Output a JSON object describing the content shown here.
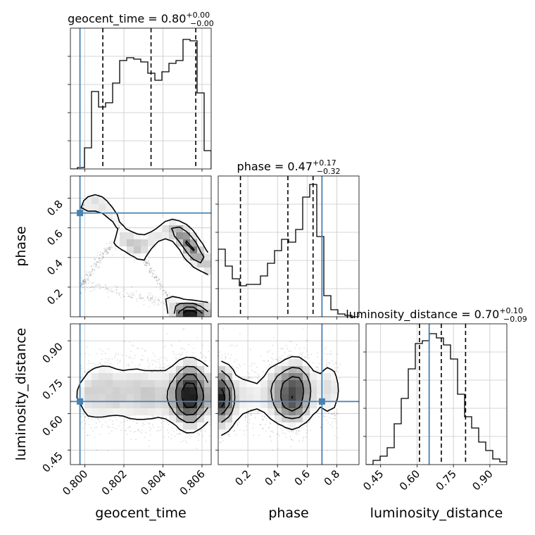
{
  "chart_data": {
    "type": "corner",
    "parameters": [
      "geocent_time",
      "phase",
      "luminosity_distance"
    ],
    "axis_labels": {
      "geocent_time": "geocent_time",
      "phase": "phase",
      "luminosity_distance": "luminosity_distance"
    },
    "ranges": {
      "geocent_time": [
        0.79926,
        0.80647
      ],
      "phase": [
        0.0,
        0.95
      ],
      "luminosity_distance": [
        0.39,
        0.97
      ]
    },
    "ticks": {
      "geocent_time": {
        "values": [
          0.8,
          0.802,
          0.804,
          0.806
        ],
        "labels": [
          "0.800",
          "0.802",
          "0.804",
          "0.806"
        ]
      },
      "phase": {
        "values": [
          0.2,
          0.4,
          0.6,
          0.8
        ],
        "labels": [
          "0.2",
          "0.4",
          "0.6",
          "0.8"
        ]
      },
      "luminosity_distance": {
        "values": [
          0.45,
          0.6,
          0.75,
          0.9
        ],
        "labels": [
          "0.45",
          "0.60",
          "0.75",
          "0.90"
        ]
      }
    },
    "titles": [
      {
        "param": "geocent_time",
        "prefix": "geocent_time = 0.80",
        "plus": "+0.00",
        "minus": "−0.00"
      },
      {
        "param": "phase",
        "prefix": "phase = 0.47",
        "plus": "+0.17",
        "minus": "−0.32"
      },
      {
        "param": "luminosity_distance",
        "prefix": "luminosity_distance = 0.70",
        "plus": "+0.10",
        "minus": "−0.09"
      }
    ],
    "truths": {
      "geocent_time": 0.79975,
      "phase": 0.7,
      "luminosity_distance": 0.65
    },
    "quantiles": {
      "geocent_time": [
        0.80092,
        0.80339,
        0.80568
      ],
      "phase": [
        0.15,
        0.47,
        0.64
      ],
      "luminosity_distance": [
        0.61,
        0.7,
        0.8
      ]
    },
    "histograms": {
      "geocent_time": [
        0.0,
        0.01,
        0.15,
        0.55,
        0.44,
        0.47,
        0.61,
        0.77,
        0.79,
        0.78,
        0.76,
        0.68,
        0.63,
        0.69,
        0.75,
        0.77,
        0.92,
        0.91,
        0.54,
        0.13
      ],
      "phase": [
        0.48,
        0.36,
        0.27,
        0.22,
        0.23,
        0.23,
        0.29,
        0.38,
        0.47,
        0.55,
        0.53,
        0.62,
        0.85,
        0.94,
        0.57,
        0.15,
        0.05,
        0.02,
        0.01,
        0.0
      ],
      "luminosity_distance": [
        0.0,
        0.03,
        0.06,
        0.12,
        0.29,
        0.47,
        0.68,
        0.86,
        0.88,
        0.93,
        0.9,
        0.85,
        0.75,
        0.5,
        0.34,
        0.26,
        0.16,
        0.1,
        0.04,
        0.02
      ]
    },
    "grid": true
  }
}
